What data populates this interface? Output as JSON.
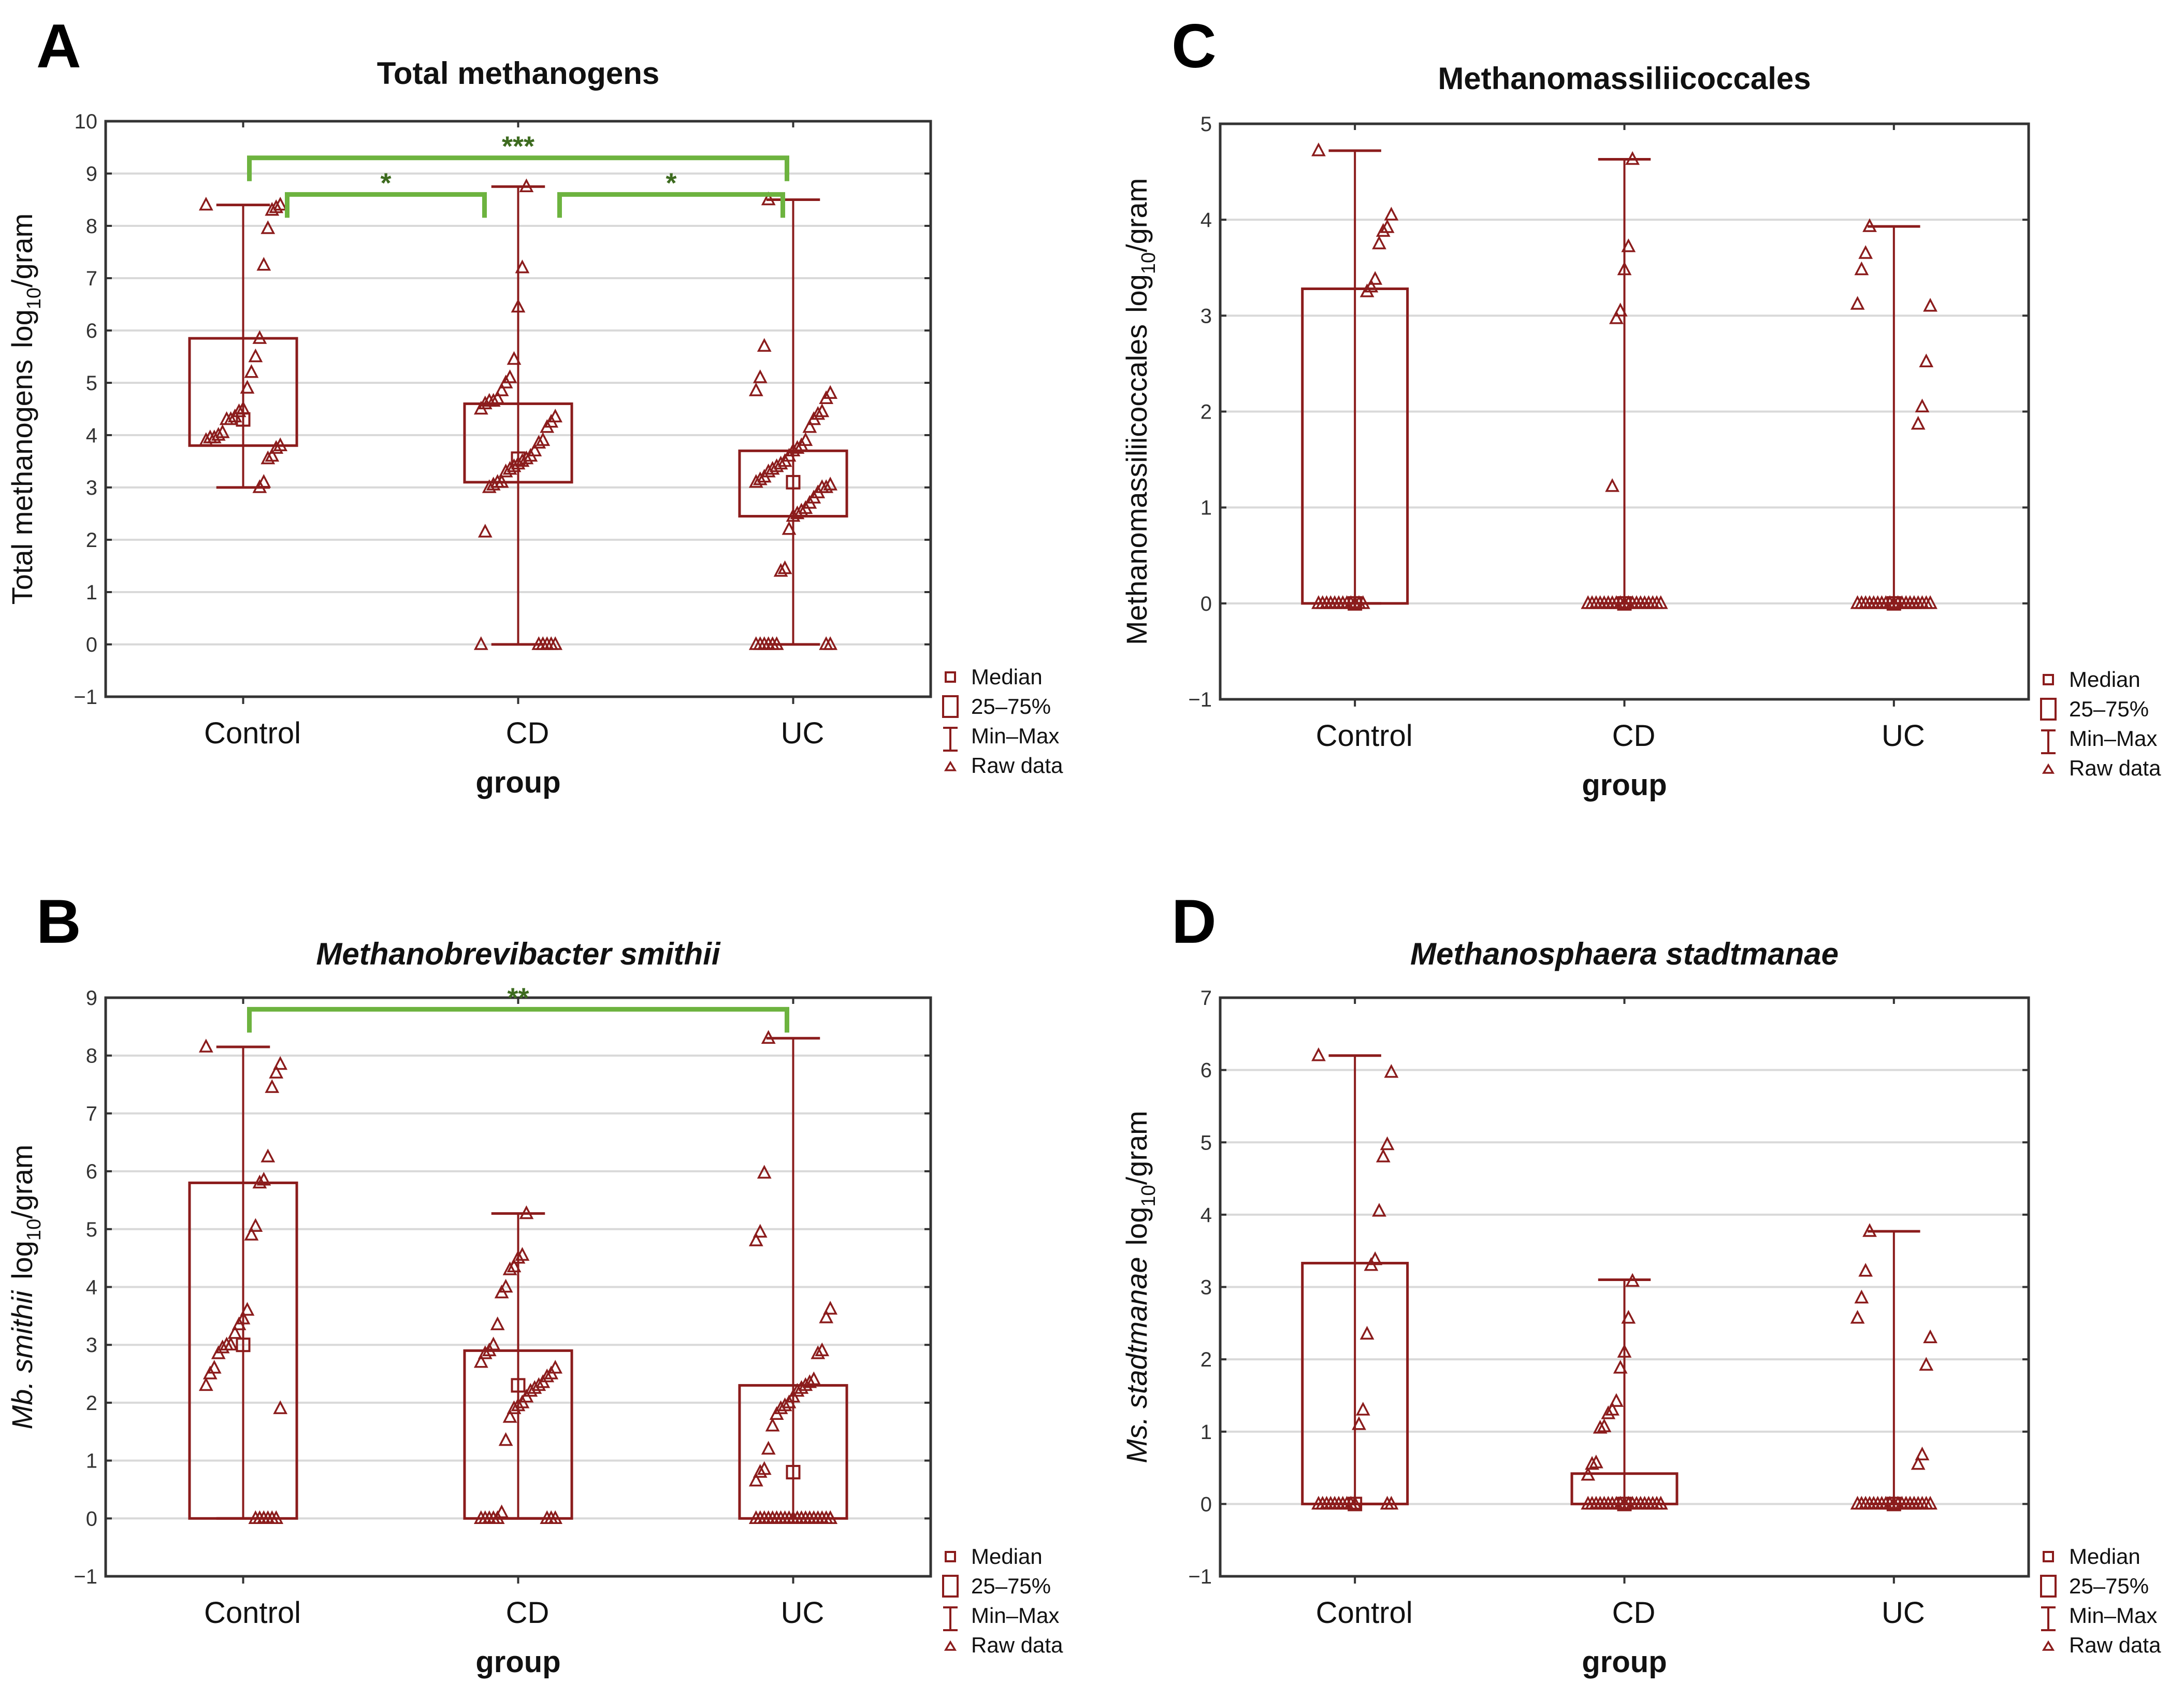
{
  "colors": {
    "box": "#8b1c1c",
    "grid": "#d9d9d9",
    "frame": "#333333",
    "bracket": "#6db33f",
    "star": "#3d6b1f"
  },
  "legend": [
    "Median",
    "25–75%",
    "Min–Max",
    "Raw data"
  ],
  "chart_data": [
    {
      "panel": "A",
      "type": "box",
      "title": "Total methanogens",
      "title_italic": false,
      "ylabel_prefix": "Total methanogens",
      "ylabel_prefix_italic": false,
      "ylabel_unit": "log",
      "ylabel_sub": "10",
      "ylabel_suffix": "/gram",
      "xlabel": "group",
      "categories": [
        "Control",
        "CD",
        "UC"
      ],
      "ylim": [
        -1,
        10
      ],
      "yticks": [
        -1,
        0,
        1,
        2,
        3,
        4,
        5,
        6,
        7,
        8,
        9,
        10
      ],
      "grid": true,
      "legend_position": "bottom-right-outside",
      "boxes": [
        {
          "min": 3.0,
          "q1": 3.8,
          "median": 4.3,
          "q3": 5.85,
          "max": 8.4
        },
        {
          "min": 0,
          "q1": 3.1,
          "median": 3.55,
          "q3": 4.6,
          "max": 8.75
        },
        {
          "min": 0,
          "q1": 2.45,
          "median": 3.1,
          "q3": 3.7,
          "max": 8.5
        }
      ],
      "raw": [
        [
          8.4,
          8.4,
          8.35,
          8.3,
          7.95,
          7.25,
          5.85,
          5.5,
          5.2,
          4.9,
          4.5,
          4.45,
          4.35,
          4.3,
          4.3,
          4.05,
          4.0,
          3.95,
          3.95,
          3.9,
          3.8,
          3.75,
          3.6,
          3.55,
          3.1,
          3.0
        ],
        [
          8.75,
          7.2,
          6.45,
          5.45,
          5.1,
          5.0,
          4.85,
          4.7,
          4.65,
          4.65,
          4.6,
          4.5,
          4.35,
          4.25,
          4.15,
          3.9,
          3.85,
          3.7,
          3.6,
          3.55,
          3.5,
          3.45,
          3.4,
          3.35,
          3.3,
          3.1,
          3.1,
          3.05,
          3.0,
          2.15,
          0,
          0,
          0,
          0,
          0,
          0
        ],
        [
          8.5,
          5.7,
          5.1,
          4.85,
          4.8,
          4.7,
          4.45,
          4.4,
          4.3,
          4.15,
          3.9,
          3.8,
          3.75,
          3.7,
          3.6,
          3.5,
          3.45,
          3.4,
          3.35,
          3.3,
          3.2,
          3.15,
          3.1,
          3.05,
          3.0,
          3.0,
          2.9,
          2.8,
          2.7,
          2.6,
          2.55,
          2.5,
          2.45,
          2.2,
          1.45,
          1.4,
          0,
          0,
          0,
          0,
          0,
          0,
          0,
          0
        ]
      ],
      "significance": [
        {
          "from": 0,
          "to": 2,
          "y": 9.3,
          "label": "***"
        },
        {
          "from": 0,
          "to": 1,
          "y": 8.6,
          "label": "*"
        },
        {
          "from": 1,
          "to": 2,
          "y": 8.6,
          "label": "*"
        }
      ]
    },
    {
      "panel": "B",
      "type": "box",
      "title": "Methanobrevibacter  smithii",
      "title_italic": true,
      "ylabel_prefix": "Mb. smithii",
      "ylabel_prefix_italic": true,
      "ylabel_unit": "log",
      "ylabel_sub": "10",
      "ylabel_suffix": "/gram",
      "xlabel": "group",
      "categories": [
        "Control",
        "CD",
        "UC"
      ],
      "ylim": [
        -1,
        9
      ],
      "yticks": [
        -1,
        0,
        1,
        2,
        3,
        4,
        5,
        6,
        7,
        8,
        9
      ],
      "grid": true,
      "legend_position": "bottom-right-outside",
      "boxes": [
        {
          "min": 0,
          "q1": 0,
          "median": 3.0,
          "q3": 5.8,
          "max": 8.15
        },
        {
          "min": 0,
          "q1": 0,
          "median": 2.3,
          "q3": 2.9,
          "max": 5.27
        },
        {
          "min": 0,
          "q1": 0,
          "median": 0.8,
          "q3": 2.3,
          "max": 8.3
        }
      ],
      "raw": [
        [
          8.15,
          7.85,
          7.7,
          7.45,
          6.25,
          5.85,
          5.8,
          5.05,
          4.9,
          3.6,
          3.45,
          3.35,
          3.2,
          3.0,
          3.0,
          2.95,
          2.85,
          2.6,
          2.5,
          2.3,
          1.9,
          0,
          0,
          0,
          0,
          0,
          0
        ],
        [
          5.27,
          4.55,
          4.5,
          4.35,
          4.3,
          4.0,
          3.9,
          3.35,
          3.0,
          2.9,
          2.85,
          2.7,
          2.6,
          2.5,
          2.45,
          2.35,
          2.3,
          2.25,
          2.2,
          2.1,
          2.0,
          1.95,
          1.9,
          1.75,
          1.35,
          0.1,
          0,
          0,
          0,
          0,
          0,
          0,
          0,
          0
        ],
        [
          8.3,
          5.97,
          4.95,
          4.8,
          3.62,
          3.47,
          2.9,
          2.85,
          2.4,
          2.35,
          2.3,
          2.25,
          2.2,
          2.1,
          2.0,
          1.95,
          1.9,
          1.8,
          1.6,
          1.2,
          0.85,
          0.8,
          0.65,
          0,
          0,
          0,
          0,
          0,
          0,
          0,
          0,
          0,
          0,
          0,
          0,
          0,
          0,
          0,
          0,
          0,
          0,
          0,
          0
        ]
      ],
      "significance": [
        {
          "from": 0,
          "to": 2,
          "y": 8.8,
          "label": "**"
        }
      ]
    },
    {
      "panel": "C",
      "type": "box",
      "title": "Methanomassiliicoccales",
      "title_italic": false,
      "ylabel_prefix": "Methanomassiliicoccales",
      "ylabel_prefix_italic": false,
      "ylabel_unit": "log",
      "ylabel_sub": "10",
      "ylabel_suffix": "/gram",
      "xlabel": "group",
      "categories": [
        "Control",
        "CD",
        "UC"
      ],
      "ylim": [
        -1,
        5
      ],
      "yticks": [
        -1,
        0,
        1,
        2,
        3,
        4,
        5
      ],
      "grid": true,
      "legend_position": "bottom-right-outside",
      "boxes": [
        {
          "min": 0,
          "q1": 0,
          "median": 0,
          "q3": 3.28,
          "max": 4.72
        },
        {
          "min": 0,
          "q1": 0,
          "median": 0,
          "q3": 0,
          "max": 4.63
        },
        {
          "min": 0,
          "q1": 0,
          "median": 0,
          "q3": 0,
          "max": 3.93
        }
      ],
      "raw": [
        [
          4.72,
          4.05,
          3.92,
          3.88,
          3.75,
          3.38,
          3.3,
          3.25,
          0,
          0,
          0,
          0,
          0,
          0,
          0,
          0,
          0,
          0,
          0,
          0
        ],
        [
          4.63,
          3.72,
          3.48,
          3.05,
          2.97,
          1.22,
          0,
          0,
          0,
          0,
          0,
          0,
          0,
          0,
          0,
          0,
          0,
          0,
          0,
          0,
          0,
          0,
          0,
          0,
          0,
          0
        ],
        [
          3.93,
          3.65,
          3.48,
          3.12,
          3.1,
          2.52,
          2.05,
          1.87,
          0,
          0,
          0,
          0,
          0,
          0,
          0,
          0,
          0,
          0,
          0,
          0,
          0,
          0,
          0,
          0,
          0,
          0,
          0,
          0,
          0,
          0
        ]
      ],
      "significance": []
    },
    {
      "panel": "D",
      "type": "box",
      "title": "Methanosphaera stadtmanae",
      "title_italic": true,
      "ylabel_prefix": "Ms. stadtmanae",
      "ylabel_prefix_italic": true,
      "ylabel_unit": "log",
      "ylabel_sub": "10",
      "ylabel_suffix": "/gram",
      "xlabel": "group",
      "categories": [
        "Control",
        "CD",
        "UC"
      ],
      "ylim": [
        -1,
        7
      ],
      "yticks": [
        -1,
        0,
        1,
        2,
        3,
        4,
        5,
        6,
        7
      ],
      "grid": true,
      "legend_position": "bottom-right-outside",
      "boxes": [
        {
          "min": 0,
          "q1": 0,
          "median": 0,
          "q3": 3.33,
          "max": 6.2
        },
        {
          "min": 0,
          "q1": 0,
          "median": 0,
          "q3": 0.42,
          "max": 3.1
        },
        {
          "min": 0,
          "q1": 0,
          "median": 0,
          "q3": 0,
          "max": 3.77
        }
      ],
      "raw": [
        [
          6.2,
          5.97,
          4.97,
          4.8,
          4.05,
          3.38,
          3.3,
          2.35,
          1.3,
          1.1,
          0,
          0,
          0,
          0,
          0,
          0,
          0,
          0,
          0,
          0,
          0,
          0
        ],
        [
          3.08,
          2.57,
          2.1,
          1.88,
          1.42,
          1.3,
          1.25,
          1.07,
          1.05,
          0.57,
          0.55,
          0.4,
          0,
          0,
          0,
          0,
          0,
          0,
          0,
          0,
          0,
          0,
          0,
          0,
          0,
          0,
          0,
          0,
          0,
          0,
          0,
          0
        ],
        [
          3.77,
          3.22,
          2.85,
          2.57,
          2.3,
          1.92,
          0.68,
          0.55,
          0,
          0,
          0,
          0,
          0,
          0,
          0,
          0,
          0,
          0,
          0,
          0,
          0,
          0,
          0,
          0,
          0,
          0,
          0,
          0,
          0,
          0
        ]
      ],
      "significance": []
    }
  ]
}
